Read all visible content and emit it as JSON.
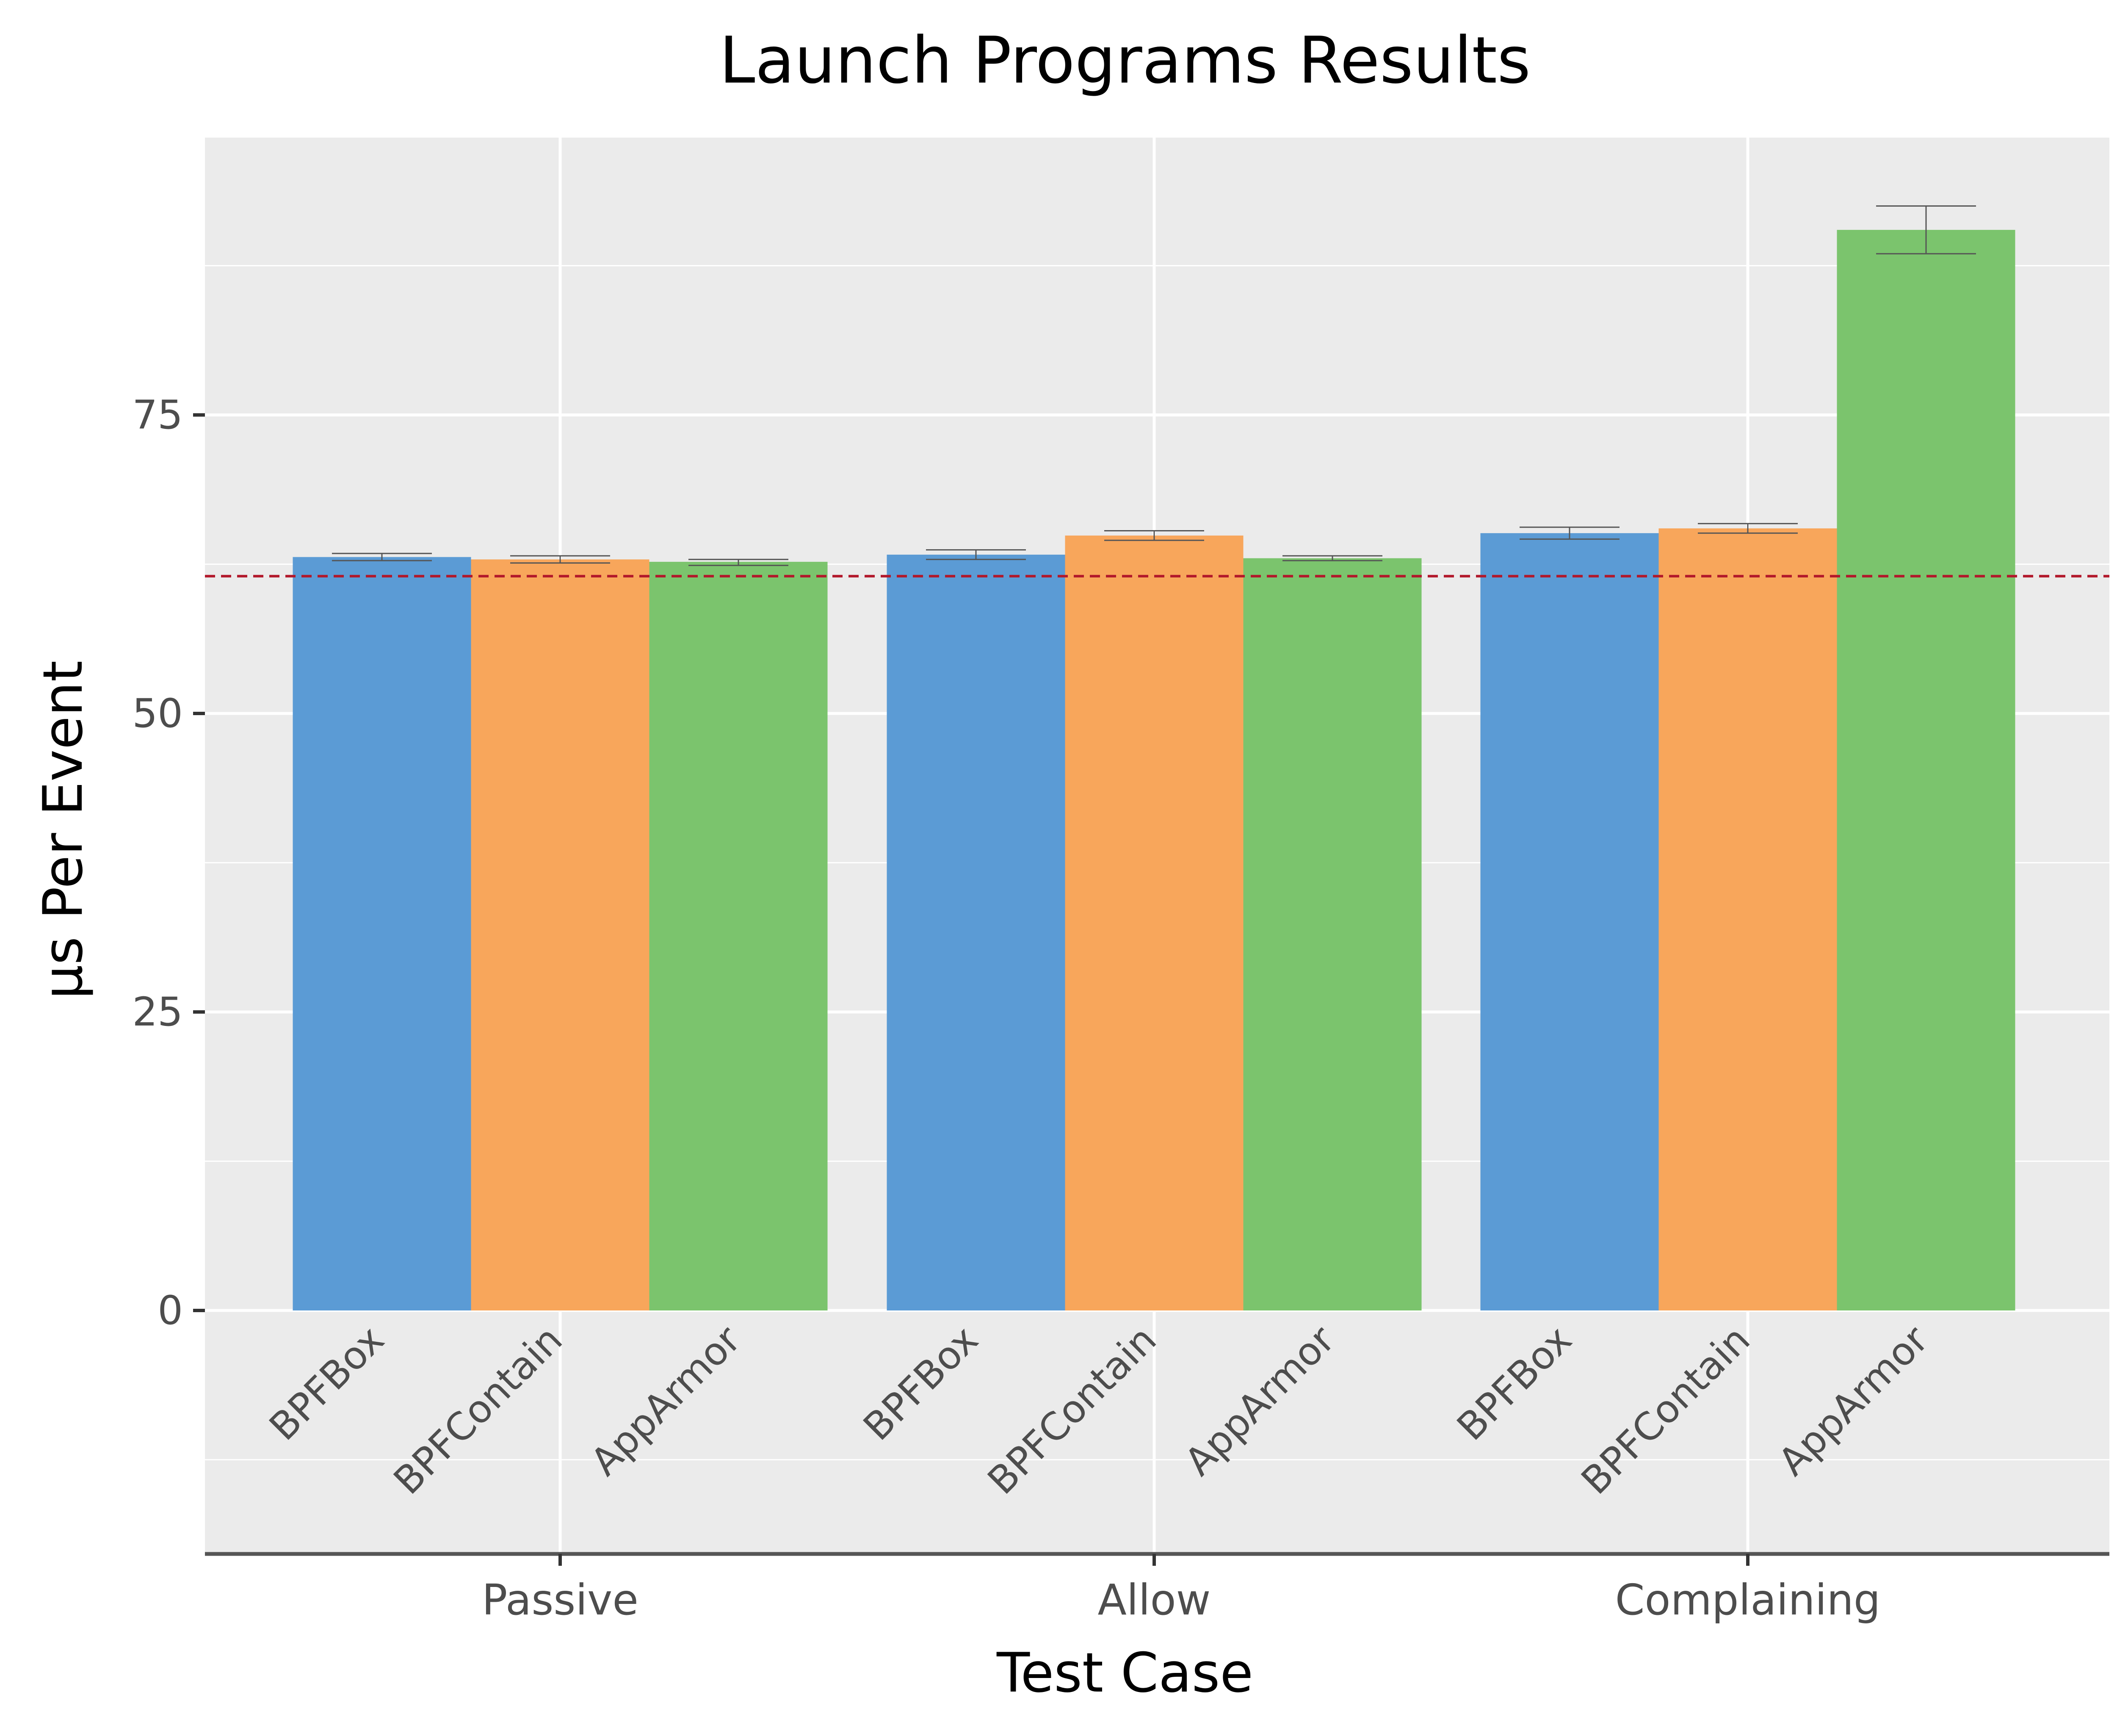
{
  "chart_data": {
    "type": "bar",
    "title": "Launch Programs Results",
    "xlabel": "Test Case",
    "ylabel": "µs Per Event",
    "groups": [
      "Passive",
      "Allow",
      "Complaining"
    ],
    "series": [
      {
        "name": "BPFBox",
        "color": "#5B9BD5",
        "values": [
          63.1,
          63.3,
          65.1
        ],
        "err_low": [
          62.8,
          62.9,
          64.6
        ],
        "err_high": [
          63.4,
          63.7,
          65.6
        ]
      },
      {
        "name": "BPFContain",
        "color": "#F8A65B",
        "values": [
          62.9,
          64.9,
          65.5
        ],
        "err_low": [
          62.6,
          64.5,
          65.1
        ],
        "err_high": [
          63.2,
          65.3,
          65.9
        ]
      },
      {
        "name": "AppArmor",
        "color": "#7BC46D",
        "values": [
          62.7,
          63.0,
          90.5
        ],
        "err_low": [
          62.4,
          62.8,
          88.5
        ],
        "err_high": [
          62.9,
          63.2,
          92.5
        ]
      }
    ],
    "reference_line": 61.5,
    "reference_color": "#B2182B",
    "yticks": [
      0,
      25,
      50,
      75
    ],
    "ylim": [
      -20.5,
      98
    ],
    "grid": true,
    "panel_color": "#EBEBEB"
  }
}
